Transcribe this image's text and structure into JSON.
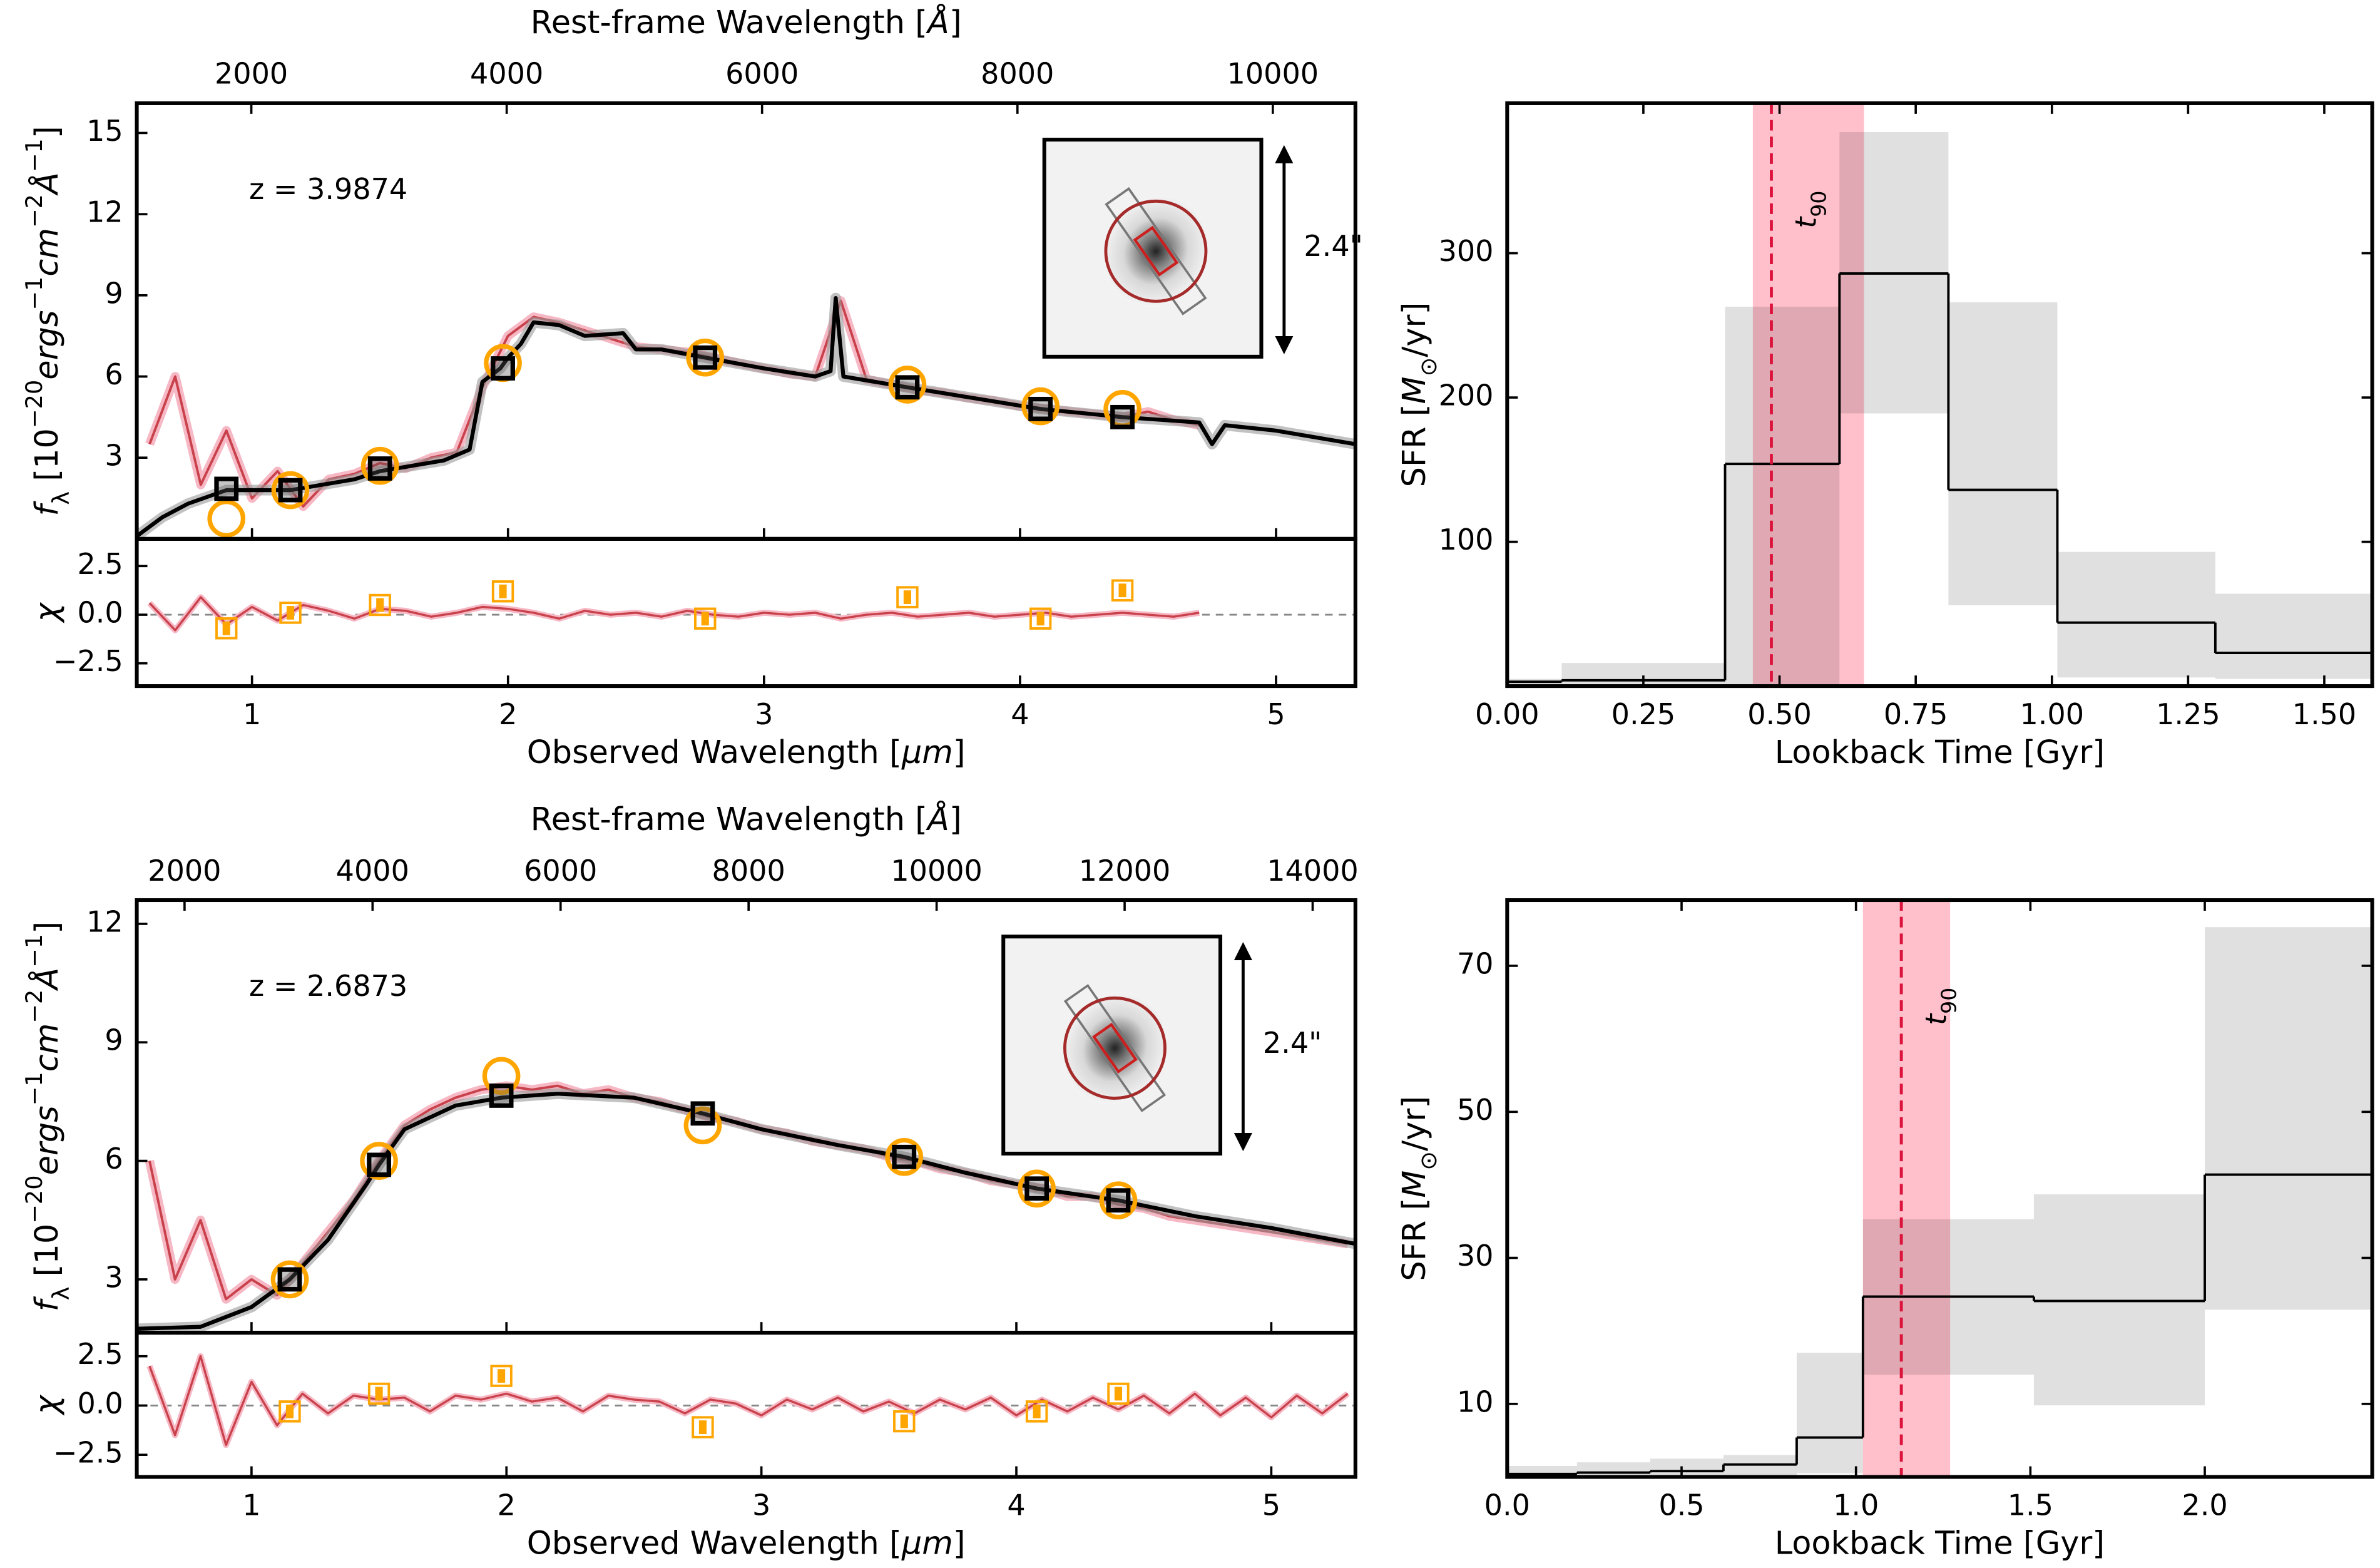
{
  "chart_data": [
    {
      "type": "sed",
      "annotation": "z = 3.9874",
      "scale_label": "2.4\"",
      "xlabel": [
        [
          "Observed Wavelength [",
          "n"
        ],
        [
          "μm",
          "i"
        ],
        [
          "]",
          "n"
        ]
      ],
      "x2label": [
        [
          "Rest-frame Wavelength [",
          "n"
        ],
        [
          "Å",
          "i"
        ],
        [
          "]",
          "n"
        ]
      ],
      "ylabel": [
        [
          "f",
          "i"
        ],
        [
          "λ",
          "sub"
        ],
        [
          " [10",
          "n"
        ],
        [
          "−20",
          "sup"
        ],
        [
          "ergs",
          "i"
        ],
        [
          "−1",
          "sup"
        ],
        [
          "cm",
          "i"
        ],
        [
          "−2",
          "sup"
        ],
        [
          "Å",
          "i"
        ],
        [
          "−1",
          "sup"
        ],
        [
          "]",
          "n"
        ]
      ],
      "resid_ylabel": "χ",
      "xlim": [
        0.55,
        5.31
      ],
      "xticks": [
        1,
        2,
        3,
        4,
        5
      ],
      "x2lim": [
        1103,
        10647
      ],
      "x2ticks": [
        2000,
        4000,
        6000,
        8000,
        10000
      ],
      "ylim": [
        0,
        16.1
      ],
      "yticks": [
        3,
        6,
        9,
        12,
        15
      ],
      "resid_ylim": [
        -3.67,
        3.9
      ],
      "resid_yticks": [
        2.5,
        {
          "value": 0,
          "label": "0.0"
        },
        {
          "value": -2.5,
          "label": "−2.5"
        }
      ],
      "spectrum": {
        "color": "#c8414b",
        "band_color": "#f6b8c4",
        "x": [
          0.6,
          0.7,
          0.8,
          0.9,
          1.0,
          1.1,
          1.2,
          1.3,
          1.4,
          1.5,
          1.6,
          1.7,
          1.8,
          1.9,
          2.0,
          2.1,
          2.2,
          2.3,
          2.4,
          2.5,
          2.6,
          2.7,
          2.8,
          2.9,
          3.0,
          3.1,
          3.2,
          3.3,
          3.4,
          3.5,
          3.6,
          3.7,
          3.8,
          3.9,
          4.0,
          4.1,
          4.2,
          4.3,
          4.4,
          4.5,
          4.6,
          4.7
        ],
        "values": [
          3.5,
          6,
          2,
          4,
          1.5,
          2.5,
          1.2,
          2.2,
          2.4,
          2.8,
          2.6,
          3.0,
          3.2,
          5.6,
          7.5,
          8.2,
          8.0,
          7.7,
          7.4,
          7.1,
          7.0,
          6.9,
          6.7,
          6.5,
          6.3,
          6.1,
          6.0,
          8.8,
          5.9,
          5.7,
          5.5,
          5.4,
          5.2,
          5.1,
          4.9,
          4.8,
          4.7,
          4.6,
          4.5,
          4.7,
          4.4,
          4.2
        ]
      },
      "resid": {
        "color": "#c8414b",
        "values": [
          0.6,
          -0.8,
          0.9,
          -0.5,
          0.4,
          -0.3,
          0.5,
          0.2,
          -0.2,
          0.3,
          0.2,
          -0.1,
          0.1,
          0.4,
          0.3,
          0.1,
          -0.2,
          0.2,
          0.0,
          0.1,
          -0.1,
          0.2,
          0.0,
          -0.1,
          0.1,
          0.0,
          0.1,
          -0.2,
          0.0,
          0.1,
          -0.1,
          0.0,
          0.1,
          -0.1,
          0.0,
          0.1,
          -0.1,
          0.0,
          0.1,
          0.0,
          -0.1,
          0.1
        ]
      },
      "model": {
        "color": "#000000",
        "band_color": "#999999",
        "x": [
          0.55,
          0.65,
          0.75,
          0.9,
          1.15,
          1.4,
          1.5,
          1.75,
          1.85,
          1.9,
          1.97,
          2.0,
          2.05,
          2.1,
          2.2,
          2.3,
          2.45,
          2.5,
          2.6,
          2.77,
          3.0,
          3.2,
          3.26,
          3.28,
          3.31,
          3.56,
          4.08,
          4.4,
          4.7,
          4.75,
          4.8,
          5.0,
          5.31
        ],
        "values": [
          0.1,
          0.8,
          1.3,
          1.8,
          1.8,
          2.2,
          2.5,
          2.9,
          3.3,
          5.8,
          6.3,
          6.7,
          7.2,
          8.0,
          7.9,
          7.5,
          7.6,
          7.0,
          7.0,
          6.7,
          6.3,
          6.0,
          6.2,
          8.9,
          6.0,
          5.6,
          4.8,
          4.5,
          4.3,
          3.5,
          4.2,
          4.0,
          3.5
        ]
      },
      "phot": {
        "obs_color": "#ffa500",
        "model_color": "#000000",
        "x": [
          0.9,
          1.15,
          1.5,
          1.98,
          2.77,
          3.56,
          4.08,
          4.4
        ],
        "observed": [
          0.75,
          1.8,
          2.7,
          6.5,
          6.7,
          5.7,
          4.9,
          4.8
        ],
        "model": [
          1.85,
          1.8,
          2.6,
          6.3,
          6.7,
          5.6,
          4.8,
          4.5
        ],
        "chi": [
          -0.7,
          0.1,
          0.5,
          1.2,
          -0.2,
          0.9,
          -0.2,
          1.25
        ]
      }
    },
    {
      "type": "step",
      "xlabel": "Lookback Time [Gyr]",
      "ylabel": [
        [
          "SFR [",
          "n"
        ],
        [
          "M",
          "i"
        ],
        [
          "⊙",
          "sub"
        ],
        [
          "/yr]",
          "n"
        ]
      ],
      "xlim": [
        0,
        1.588
      ],
      "xticks": [
        {
          "value": 0,
          "label": "0.00"
        },
        0.25,
        {
          "value": 0.5,
          "label": "0.50"
        },
        0.75,
        {
          "value": 1,
          "label": "1.00"
        },
        1.25,
        {
          "value": 1.5,
          "label": "1.50"
        }
      ],
      "ylim": [
        0,
        404
      ],
      "yticks": [
        100,
        200,
        300
      ],
      "edges": [
        0,
        0.1,
        0.4,
        0.61,
        0.81,
        1.01,
        1.3,
        1.588
      ],
      "values": [
        3,
        4,
        154,
        286,
        136,
        44,
        23
      ],
      "lower": [
        0,
        0,
        0,
        189,
        56,
        6,
        5
      ],
      "upper": [
        5,
        16,
        263,
        384,
        266,
        93,
        64
      ],
      "color": "#000000",
      "band_color": "#0000001f",
      "t90": 0.485,
      "t90_range": [
        0.451,
        0.655
      ],
      "t90_color": "#dc143c",
      "t90_band_color": "#ffc0cb",
      "t90_label": [
        [
          "t",
          "i"
        ],
        [
          "90",
          "sub"
        ]
      ]
    },
    {
      "type": "sed",
      "annotation": "z = 2.6873",
      "scale_label": "2.4\"",
      "xlabel": [
        [
          "Observed Wavelength [",
          "n"
        ],
        [
          "μm",
          "i"
        ],
        [
          "]",
          "n"
        ]
      ],
      "x2label": [
        [
          "Rest-frame Wavelength [",
          "n"
        ],
        [
          "Å",
          "i"
        ],
        [
          "]",
          "n"
        ]
      ],
      "ylabel": [
        [
          "f",
          "i"
        ],
        [
          "λ",
          "sub"
        ],
        [
          " [10",
          "n"
        ],
        [
          "−20",
          "sup"
        ],
        [
          "ergs",
          "i"
        ],
        [
          "−1",
          "sup"
        ],
        [
          "cm",
          "i"
        ],
        [
          "−2",
          "sup"
        ],
        [
          "Å",
          "i"
        ],
        [
          "−1",
          "sup"
        ],
        [
          "]",
          "n"
        ]
      ],
      "resid_ylabel": "χ",
      "xlim": [
        0.55,
        5.33
      ],
      "xticks": [
        1,
        2,
        3,
        4,
        5
      ],
      "x2lim": [
        1492,
        14455
      ],
      "x2ticks": [
        2000,
        4000,
        6000,
        8000,
        10000,
        12000,
        14000
      ],
      "ylim": [
        1.65,
        12.6
      ],
      "yticks": [
        3,
        6,
        9,
        12
      ],
      "resid_ylim": [
        -3.62,
        3.69
      ],
      "resid_yticks": [
        2.5,
        {
          "value": 0,
          "label": "0.0"
        },
        {
          "value": -2.5,
          "label": "−2.5"
        }
      ],
      "spectrum": {
        "color": "#c8414b",
        "band_color": "#f6b8c4",
        "x": [
          0.6,
          0.7,
          0.8,
          0.9,
          1.0,
          1.1,
          1.2,
          1.3,
          1.4,
          1.5,
          1.6,
          1.7,
          1.8,
          1.9,
          2.0,
          2.1,
          2.2,
          2.3,
          2.4,
          2.5,
          2.6,
          2.7,
          2.8,
          2.9,
          3.0,
          3.1,
          3.2,
          3.3,
          3.4,
          3.5,
          3.6,
          3.7,
          3.8,
          3.9,
          4.0,
          4.1,
          4.2,
          4.3,
          4.4,
          4.5,
          4.6,
          4.7,
          4.8,
          4.9,
          5.0,
          5.1,
          5.2,
          5.3
        ],
        "values": [
          6,
          3,
          4.5,
          2.5,
          3.0,
          2.6,
          3.4,
          4.2,
          5.0,
          6.0,
          6.9,
          7.3,
          7.6,
          7.8,
          7.9,
          7.8,
          7.9,
          7.7,
          7.8,
          7.6,
          7.5,
          7.3,
          7.1,
          7.0,
          6.8,
          6.7,
          6.5,
          6.4,
          6.3,
          6.1,
          6.0,
          5.8,
          5.7,
          5.5,
          5.4,
          5.3,
          5.1,
          5.1,
          4.9,
          4.8,
          4.6,
          4.5,
          4.4,
          4.3,
          4.2,
          4.1,
          4.0,
          3.9
        ]
      },
      "resid": {
        "color": "#c8414b",
        "values": [
          2.0,
          -1.5,
          2.5,
          -2.0,
          1.2,
          -1.0,
          0.6,
          -0.4,
          0.5,
          0.3,
          0.4,
          -0.3,
          0.5,
          0.3,
          0.6,
          0.2,
          0.4,
          -0.3,
          0.5,
          0.3,
          0.2,
          -0.4,
          0.3,
          0.1,
          -0.5,
          0.3,
          -0.2,
          0.4,
          -0.3,
          0.2,
          -0.4,
          0.3,
          -0.2,
          0.4,
          -0.5,
          0.3,
          -0.3,
          0.4,
          -0.2,
          0.5,
          -0.4,
          0.6,
          -0.5,
          0.4,
          -0.6,
          0.5,
          -0.4,
          0.6
        ]
      },
      "model": {
        "color": "#000000",
        "band_color": "#999999",
        "x": [
          0.55,
          0.8,
          1.0,
          1.15,
          1.3,
          1.45,
          1.5,
          1.6,
          1.8,
          1.98,
          2.2,
          2.5,
          2.77,
          3.0,
          3.3,
          3.56,
          3.8,
          4.08,
          4.4,
          4.7,
          5.0,
          5.33
        ],
        "values": [
          1.75,
          1.8,
          2.3,
          3.0,
          4.0,
          5.4,
          5.9,
          6.8,
          7.4,
          7.6,
          7.7,
          7.6,
          7.2,
          6.8,
          6.4,
          6.1,
          5.7,
          5.3,
          5.0,
          4.6,
          4.3,
          3.9
        ]
      },
      "phot": {
        "obs_color": "#ffa500",
        "model_color": "#000000",
        "x": [
          1.15,
          1.5,
          1.98,
          2.77,
          3.56,
          4.08,
          4.4
        ],
        "observed": [
          3.0,
          6.0,
          8.15,
          6.9,
          6.1,
          5.3,
          5.0
        ],
        "model": [
          3.0,
          5.9,
          7.65,
          7.2,
          6.1,
          5.3,
          5.0
        ],
        "chi": [
          -0.3,
          0.6,
          1.5,
          -1.1,
          -0.8,
          -0.3,
          0.6
        ]
      }
    },
    {
      "type": "step",
      "xlabel": "Lookback Time [Gyr]",
      "ylabel": [
        [
          "SFR [",
          "n"
        ],
        [
          "M",
          "i"
        ],
        [
          "⊙",
          "sub"
        ],
        [
          "/yr]",
          "n"
        ]
      ],
      "xlim": [
        0,
        2.48
      ],
      "xticks": [
        {
          "value": 0,
          "label": "0.0"
        },
        0.5,
        {
          "value": 1,
          "label": "1.0"
        },
        1.5,
        {
          "value": 2,
          "label": "2.0"
        }
      ],
      "ylim": [
        0,
        79
      ],
      "yticks": [
        10,
        30,
        50,
        70
      ],
      "edges": [
        0,
        0.2,
        0.41,
        0.62,
        0.83,
        1.02,
        1.51,
        2.0,
        2.48
      ],
      "values": [
        0.4,
        0.6,
        0.8,
        1.7,
        5.4,
        24.7,
        24.1,
        41.4
      ],
      "lower": [
        0,
        0,
        0,
        0,
        0.5,
        14,
        9.8,
        22.9
      ],
      "upper": [
        1.5,
        2,
        2.5,
        3,
        17,
        35.3,
        38.7,
        75.3
      ],
      "color": "#000000",
      "band_color": "#0000001f",
      "t90": 1.13,
      "t90_range": [
        1.02,
        1.27
      ],
      "t90_color": "#dc143c",
      "t90_band_color": "#ffc0cb",
      "t90_label": [
        [
          "t",
          "i"
        ],
        [
          "90",
          "sub"
        ]
      ]
    }
  ]
}
